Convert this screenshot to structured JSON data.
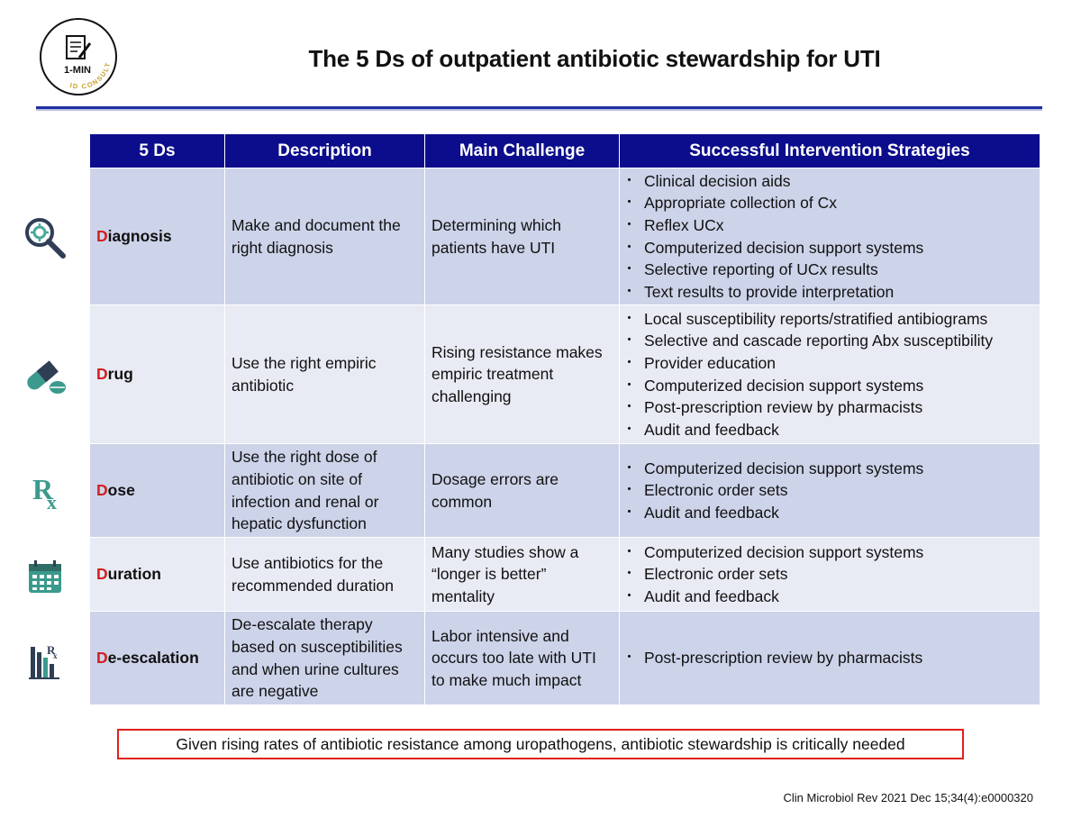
{
  "logo": {
    "label": "1-MIN",
    "tagline": "ID CONSULT"
  },
  "title": "The 5 Ds of outpatient antibiotic stewardship for UTI",
  "table": {
    "headers": [
      "5 Ds",
      "Description",
      "Main Challenge",
      "Successful Intervention Strategies"
    ],
    "rows": [
      {
        "icon": "magnifier-gear-icon",
        "d_first": "D",
        "d_rest": "iagnosis",
        "description": "Make and document the right diagnosis",
        "challenge": "Determining which patients have UTI",
        "strategies": [
          "Clinical decision aids",
          "Appropriate collection of Cx",
          "Reflex UCx",
          "Computerized decision support systems",
          "Selective reporting of UCx results",
          "Text results to provide interpretation"
        ]
      },
      {
        "icon": "pill-capsule-icon",
        "d_first": "D",
        "d_rest": "rug",
        "description": "Use the right empiric antibiotic",
        "challenge": "Rising resistance makes empiric treatment challenging",
        "strategies": [
          "Local susceptibility reports/stratified antibiograms",
          "Selective and cascade reporting Abx susceptibility",
          "Provider education",
          "Computerized decision support systems",
          "Post-prescription review by pharmacists",
          "Audit and feedback"
        ]
      },
      {
        "icon": "rx-symbol-icon",
        "d_first": "D",
        "d_rest": "ose",
        "description": "Use the right dose of antibiotic on site of infection and renal or hepatic dysfunction",
        "challenge": "Dosage errors are common",
        "strategies": [
          "Computerized decision support systems",
          "Electronic order sets",
          "Audit and feedback"
        ]
      },
      {
        "icon": "calendar-icon",
        "d_first": "D",
        "d_rest": "uration",
        "description": "Use antibiotics for the recommended  duration",
        "challenge": "Many studies show a “longer is better” mentality",
        "strategies": [
          "Computerized decision support systems",
          "Electronic order sets",
          "Audit and feedback"
        ]
      },
      {
        "icon": "descending-bars-rx-icon",
        "d_first": "D",
        "d_rest": "e-escalation",
        "description": "De-escalate therapy based on susceptibilities and when urine cultures are negative",
        "challenge": "Labor intensive and occurs too late with UTI to make much impact",
        "strategies": [
          "Post-prescription review by pharmacists"
        ]
      }
    ]
  },
  "icons": {
    "rx_glyph": "R",
    "rx_sub": "x"
  },
  "footer": "Given rising rates of antibiotic resistance among uropathogens, antibiotic stewardship is critically needed",
  "citation": "Clin Microbiol Rev 2021 Dec 15;34(4):e0000320",
  "colors": {
    "header_bg": "#0c0d8c",
    "row_odd": "#cdd3e9",
    "row_even": "#e8ebf4",
    "accent_red": "#d11f1f",
    "icon_teal": "#3a9a8c",
    "rule_blue": "#1f2fa0"
  }
}
